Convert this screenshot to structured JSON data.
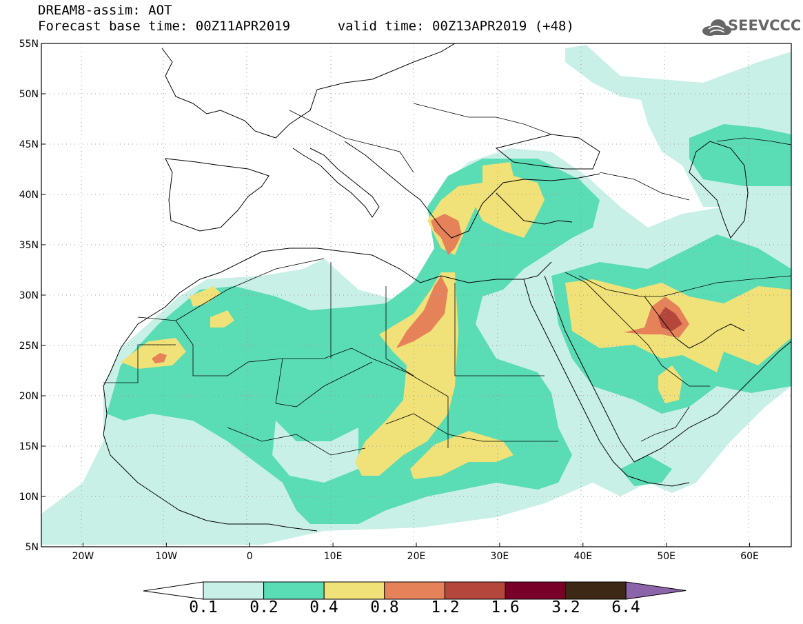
{
  "header": {
    "title": "DREAM8-assim: AOT",
    "base_label": "Forecast base time:",
    "base_time": "00Z11APR2019",
    "valid_label": "valid time:",
    "valid_time": "00Z13APR2019 (+48)"
  },
  "logo": {
    "text": "SEEVCCC",
    "icon": "cloud-icon"
  },
  "map": {
    "lon_range": [
      -25,
      65
    ],
    "lat_range": [
      5,
      55
    ],
    "lon_ticks": [
      {
        "value": -20,
        "label": "20W"
      },
      {
        "value": -10,
        "label": "10W"
      },
      {
        "value": 0,
        "label": "0"
      },
      {
        "value": 10,
        "label": "10E"
      },
      {
        "value": 20,
        "label": "20E"
      },
      {
        "value": 30,
        "label": "30E"
      },
      {
        "value": 40,
        "label": "40E"
      },
      {
        "value": 50,
        "label": "50E"
      },
      {
        "value": 60,
        "label": "60E"
      }
    ],
    "lat_ticks": [
      {
        "value": 5,
        "label": "5N"
      },
      {
        "value": 10,
        "label": "10N"
      },
      {
        "value": 15,
        "label": "15N"
      },
      {
        "value": 20,
        "label": "20N"
      },
      {
        "value": 25,
        "label": "25N"
      },
      {
        "value": 30,
        "label": "30N"
      },
      {
        "value": 35,
        "label": "35N"
      },
      {
        "value": 40,
        "label": "40N"
      },
      {
        "value": 45,
        "label": "45N"
      },
      {
        "value": 50,
        "label": "50N"
      },
      {
        "value": 55,
        "label": "55N"
      }
    ],
    "grid": "dotted"
  },
  "colorbar": {
    "labels": [
      "0.1",
      "0.2",
      "0.4",
      "0.8",
      "1.2",
      "1.6",
      "3.2",
      "6.4"
    ],
    "colors": [
      "#c8f0e6",
      "#5adcb4",
      "#f0e178",
      "#e6825a",
      "#b4463c",
      "#780028",
      "#3c2814",
      "#8c64aa"
    ],
    "under_color": "#ffffff"
  }
}
